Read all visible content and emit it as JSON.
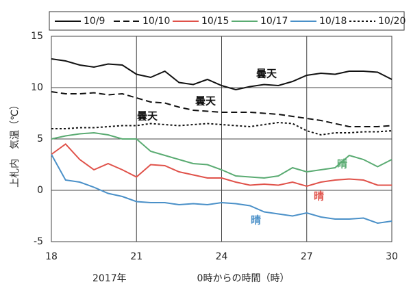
{
  "chart_data": {
    "type": "line",
    "x_label": "0時からの時間（時）",
    "y_label": "上札内　気温（℃）",
    "xlim": [
      18,
      30
    ],
    "xticks": [
      18,
      21,
      24,
      27,
      30
    ],
    "ylim": [
      -5,
      15
    ],
    "yticks": [
      -5,
      0,
      5,
      10,
      15
    ],
    "grid": true,
    "legend": "top",
    "x": [
      18,
      18.5,
      19,
      19.5,
      20,
      20.5,
      21,
      21.5,
      22,
      22.5,
      23,
      23.5,
      24,
      24.5,
      25,
      25.5,
      26,
      26.5,
      27,
      27.5,
      28,
      28.5,
      29,
      29.5,
      30
    ],
    "series": [
      {
        "name": "10/9",
        "color": "#111111",
        "style": "solid",
        "values": [
          12.8,
          12.6,
          12.2,
          12.0,
          12.3,
          12.2,
          11.3,
          11.0,
          11.6,
          10.5,
          10.3,
          10.8,
          10.2,
          9.8,
          10.1,
          10.3,
          10.2,
          10.6,
          11.2,
          11.4,
          11.3,
          11.6,
          11.6,
          11.5,
          10.8
        ]
      },
      {
        "name": "10/10",
        "color": "#111111",
        "style": "dashed",
        "values": [
          9.6,
          9.4,
          9.4,
          9.5,
          9.3,
          9.4,
          9.0,
          8.6,
          8.5,
          8.1,
          7.8,
          7.7,
          7.6,
          7.6,
          7.6,
          7.5,
          7.4,
          7.2,
          7.0,
          6.8,
          6.5,
          6.2,
          6.2,
          6.2,
          6.3
        ]
      },
      {
        "name": "10/15",
        "color": "#e0524a",
        "style": "solid",
        "values": [
          3.5,
          4.5,
          3.0,
          2.0,
          2.6,
          2.0,
          1.3,
          2.5,
          2.4,
          1.8,
          1.5,
          1.2,
          1.2,
          0.8,
          0.5,
          0.6,
          0.5,
          0.8,
          0.4,
          0.8,
          1.0,
          1.1,
          1.0,
          0.5,
          0.5
        ]
      },
      {
        "name": "10/17",
        "color": "#5aab72",
        "style": "solid",
        "values": [
          5.0,
          5.3,
          5.5,
          5.6,
          5.4,
          5.0,
          5.0,
          3.8,
          3.4,
          3.0,
          2.6,
          2.5,
          2.0,
          1.4,
          1.3,
          1.2,
          1.4,
          2.2,
          1.8,
          2.0,
          2.2,
          3.4,
          3.0,
          2.3,
          3.0
        ]
      },
      {
        "name": "10/18",
        "color": "#4a90c8",
        "style": "solid",
        "values": [
          3.5,
          1.0,
          0.8,
          0.3,
          -0.3,
          -0.6,
          -1.1,
          -1.2,
          -1.2,
          -1.4,
          -1.3,
          -1.4,
          -1.2,
          -1.3,
          -1.5,
          -2.1,
          -2.3,
          -2.5,
          -2.2,
          -2.6,
          -2.8,
          -2.8,
          -2.7,
          -3.2,
          -3.0
        ]
      },
      {
        "name": "10/20",
        "color": "#111111",
        "style": "dotted",
        "values": [
          6.0,
          6.0,
          6.1,
          6.1,
          6.2,
          6.3,
          6.3,
          6.5,
          6.4,
          6.3,
          6.4,
          6.5,
          6.4,
          6.3,
          6.2,
          6.4,
          6.6,
          6.5,
          5.8,
          5.4,
          5.6,
          5.6,
          5.7,
          5.7,
          5.8
        ]
      }
    ],
    "annotations": [
      "曇天",
      "曇天",
      "曇天",
      "晴",
      "晴",
      "晴",
      "2017年"
    ]
  }
}
